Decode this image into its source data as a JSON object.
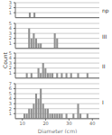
{
  "chart_data": [
    {
      "type": "bar",
      "title": "np",
      "x": [
        13,
        15
      ],
      "values": [
        1,
        1
      ],
      "color": "#909090",
      "xlim": [
        7,
        43
      ],
      "xticks": [
        10,
        20,
        30,
        40
      ],
      "ylim": [
        0,
        3
      ],
      "yticks": [
        1,
        2,
        3
      ],
      "grid": true,
      "tick_labels": "y"
    },
    {
      "type": "bar",
      "title": "III",
      "x": [
        13,
        14,
        15,
        16,
        17,
        18,
        24,
        25
      ],
      "values": [
        4,
        2,
        3,
        2,
        1,
        1,
        3,
        2
      ],
      "color": "#909090",
      "xlim": [
        7,
        43
      ],
      "xticks": [
        10,
        20,
        30,
        40
      ],
      "ylim": [
        0,
        5
      ],
      "yticks": [
        1,
        2,
        3,
        4,
        5
      ],
      "grid": true,
      "tick_labels": "y"
    },
    {
      "type": "bar",
      "title": "II",
      "x": [
        12,
        14,
        17,
        18,
        19,
        20,
        21,
        22,
        23,
        25,
        27,
        29,
        31,
        34,
        38
      ],
      "values": [
        1,
        1,
        2,
        1,
        3,
        2,
        1,
        1,
        1,
        1,
        1,
        1,
        1,
        1,
        1
      ],
      "color": "#909090",
      "xlim": [
        7,
        43
      ],
      "xticks": [
        10,
        20,
        30,
        40
      ],
      "ylim": [
        0,
        5
      ],
      "yticks": [
        1,
        2,
        3,
        4,
        5
      ],
      "grid": true,
      "tick_labels": "y"
    },
    {
      "type": "bar",
      "title": "I",
      "x": [
        11,
        12,
        13,
        14,
        15,
        16,
        17,
        18,
        19,
        20,
        21,
        22,
        23,
        24,
        25,
        26,
        27,
        29,
        32,
        34,
        35,
        38
      ],
      "values": [
        1,
        1,
        2,
        2,
        3,
        5,
        4,
        6,
        3,
        2,
        2,
        1,
        1,
        1,
        1,
        1,
        1,
        1,
        1,
        3,
        1,
        1
      ],
      "color": "#909090",
      "xlim": [
        7,
        43
      ],
      "xticks": [
        10,
        20,
        30,
        40
      ],
      "ylim": [
        0,
        7
      ],
      "yticks": [
        1,
        2,
        3,
        4,
        5,
        6,
        7
      ],
      "grid": true,
      "xlabel": "Diameter (cm)",
      "ylabel": "Count"
    }
  ]
}
